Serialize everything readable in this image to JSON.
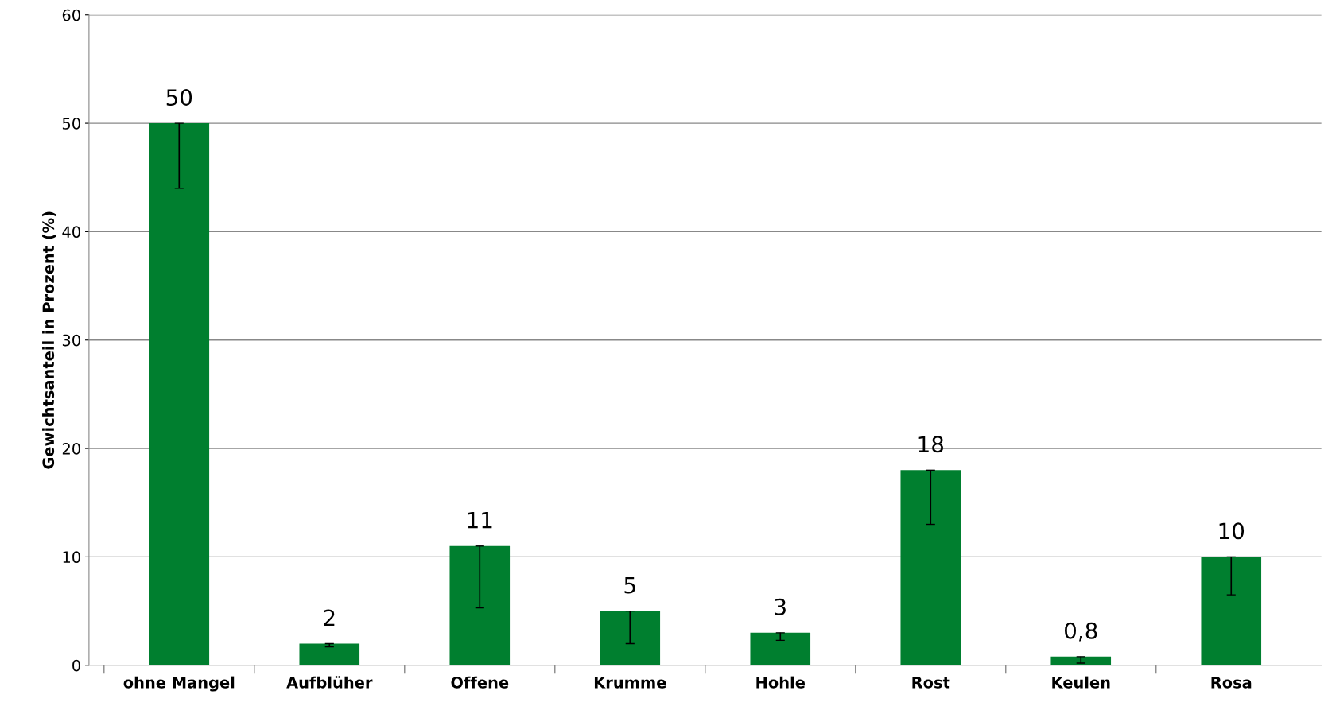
{
  "chart_data": {
    "type": "bar",
    "ylabel": "Gewichtsanteil in Prozent (%)",
    "categories": [
      "ohne Mangel",
      "Aufblüher",
      "Offene",
      "Krumme",
      "Hohle",
      "Rost",
      "Keulen",
      "Rosa"
    ],
    "values": [
      50,
      2,
      11,
      5,
      3,
      18,
      0.8,
      10
    ],
    "value_labels": [
      "50",
      "2",
      "11",
      "5",
      "3",
      "18",
      "0,8",
      "10"
    ],
    "errors": [
      [
        44,
        50
      ],
      [
        1.7,
        2
      ],
      [
        5.3,
        11
      ],
      [
        2,
        5
      ],
      [
        2.3,
        3
      ],
      [
        13,
        18
      ],
      [
        0.2,
        0.8
      ],
      [
        6.5,
        10
      ]
    ],
    "color": "#007f2f",
    "ylim": [
      0,
      60
    ],
    "yticks": [
      0,
      10,
      20,
      30,
      40,
      50,
      60
    ],
    "grid": "y"
  }
}
